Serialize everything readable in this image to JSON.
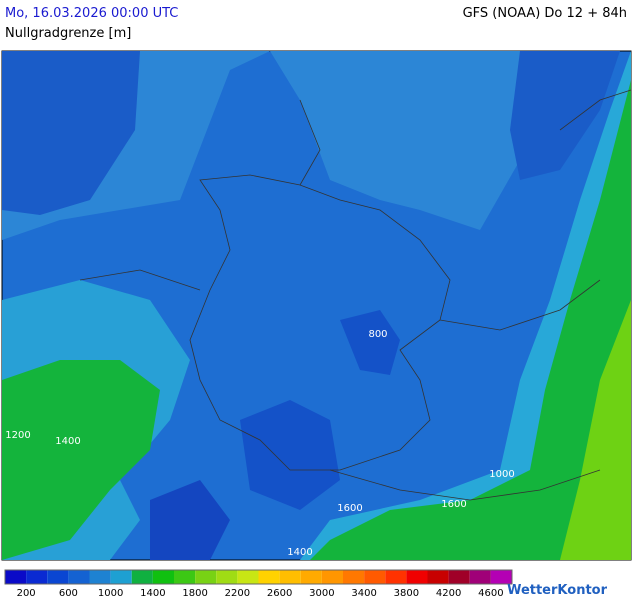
{
  "header": {
    "title": "Mo, 16.03.2026 00:00 UTC",
    "model": "GFS (NOAA) Do 12 + 84h",
    "subtitle": "Nullgradgrenze [m]"
  },
  "map": {
    "contour_labels": [
      "800",
      "1200",
      "1400",
      "1000",
      "1600",
      "1600",
      "1400"
    ]
  },
  "legend": {
    "colors": [
      "#0a0ac8",
      "#0a2ad2",
      "#0a46d2",
      "#1462d2",
      "#1e82d2",
      "#1ea0d2",
      "#10b040",
      "#10c010",
      "#3cc814",
      "#78d214",
      "#a0dc14",
      "#c8e614",
      "#ffd200",
      "#ffbe00",
      "#ffaa00",
      "#ff9600",
      "#ff7800",
      "#ff5a00",
      "#ff3200",
      "#f00000",
      "#c80000",
      "#a00028",
      "#a00078",
      "#b400b4"
    ],
    "labels": [
      "200",
      "600",
      "1000",
      "1400",
      "1800",
      "2200",
      "2600",
      "3000",
      "3400",
      "3800",
      "4200",
      "4600"
    ]
  },
  "logo": "WetterKontor"
}
